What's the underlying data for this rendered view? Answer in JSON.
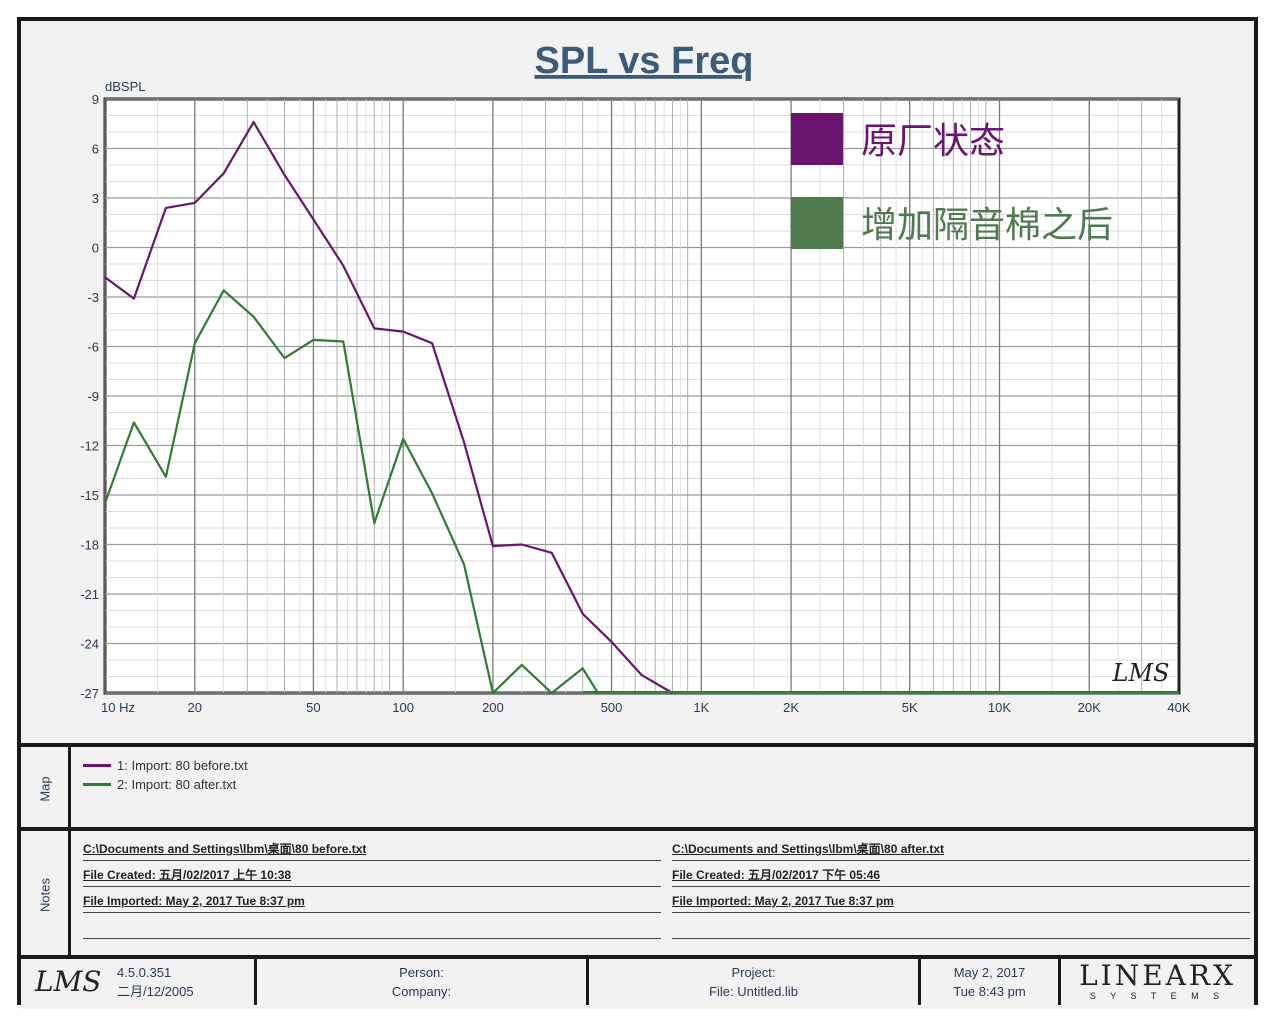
{
  "chart_data": {
    "type": "line",
    "title": "SPL vs Freq",
    "ylabel": "dBSPL",
    "ylim": [
      -27,
      9
    ],
    "yticks": [
      9,
      6,
      3,
      0,
      -3,
      -6,
      -9,
      -12,
      -15,
      -18,
      -21,
      -24,
      -27
    ],
    "xscale": "log",
    "xlim": [
      10,
      40000
    ],
    "xticks": [
      {
        "value": 10,
        "label": "10  Hz"
      },
      {
        "value": 20,
        "label": "20"
      },
      {
        "value": 50,
        "label": "50"
      },
      {
        "value": 100,
        "label": "100"
      },
      {
        "value": 200,
        "label": "200"
      },
      {
        "value": 500,
        "label": "500"
      },
      {
        "value": 1000,
        "label": "1K"
      },
      {
        "value": 2000,
        "label": "2K"
      },
      {
        "value": 5000,
        "label": "5K"
      },
      {
        "value": 10000,
        "label": "10K"
      },
      {
        "value": 20000,
        "label": "20K"
      },
      {
        "value": 40000,
        "label": "40K"
      }
    ],
    "grid": true,
    "legend_position": "top-right",
    "series": [
      {
        "name": "原厂状态",
        "color": "#6b1470",
        "points": [
          [
            10,
            -1.8
          ],
          [
            12.5,
            -3.1
          ],
          [
            16,
            2.4
          ],
          [
            20,
            2.7
          ],
          [
            25,
            4.5
          ],
          [
            31.5,
            7.6
          ],
          [
            40,
            4.4
          ],
          [
            50,
            1.7
          ],
          [
            63,
            -1.1
          ],
          [
            80,
            -4.9
          ],
          [
            100,
            -5.1
          ],
          [
            125,
            -5.8
          ],
          [
            160,
            -11.8
          ],
          [
            200,
            -18.1
          ],
          [
            250,
            -18.0
          ],
          [
            315,
            -18.5
          ],
          [
            400,
            -22.2
          ],
          [
            500,
            -23.9
          ],
          [
            630,
            -25.9
          ],
          [
            800,
            -27
          ]
        ]
      },
      {
        "name": "增加隔音棉之后",
        "color": "#2e7d32",
        "points": [
          [
            10,
            -15.5
          ],
          [
            12.5,
            -10.6
          ],
          [
            16,
            -13.9
          ],
          [
            20,
            -5.8
          ],
          [
            25,
            -2.6
          ],
          [
            31.5,
            -4.2
          ],
          [
            40,
            -6.7
          ],
          [
            50,
            -5.6
          ],
          [
            63,
            -5.7
          ],
          [
            80,
            -16.7
          ],
          [
            100,
            -11.6
          ],
          [
            125,
            -14.9
          ],
          [
            160,
            -19.2
          ],
          [
            200,
            -27
          ],
          [
            250,
            -25.3
          ],
          [
            315,
            -27
          ],
          [
            400,
            -25.5
          ],
          [
            450,
            -27
          ]
        ]
      }
    ]
  },
  "watermark": "LMS",
  "map": {
    "label": "Map",
    "entries": [
      {
        "text": "1: Import: 80 before.txt",
        "color": "#6b1470"
      },
      {
        "text": "2: Import: 80 after.txt",
        "color": "#2e7d32"
      }
    ]
  },
  "notes": {
    "label": "Notes",
    "left": {
      "path": "C:\\Documents and Settings\\lbm\\桌面\\80 before.txt",
      "created": "File Created:  五月/02/2017  上午 10:38",
      "imported": "File Imported: May  2, 2017  Tue  8:37 pm"
    },
    "right": {
      "path": "C:\\Documents and Settings\\lbm\\桌面\\80 after.txt",
      "created": "File Created:  五月/02/2017  下午 05:46",
      "imported": "File Imported: May  2, 2017  Tue  8:37 pm"
    }
  },
  "footer": {
    "logo": "LMS",
    "version": "4.5.0.351",
    "version_date": "二月/12/2005",
    "person_label": "Person:",
    "company_label": "Company:",
    "project_label": "Project:",
    "file_label": "File: Untitled.lib",
    "date": "May  2, 2017",
    "time": "Tue  8:43 pm",
    "brand": "LINEARX",
    "brand_sub": "S Y S T E M S"
  }
}
